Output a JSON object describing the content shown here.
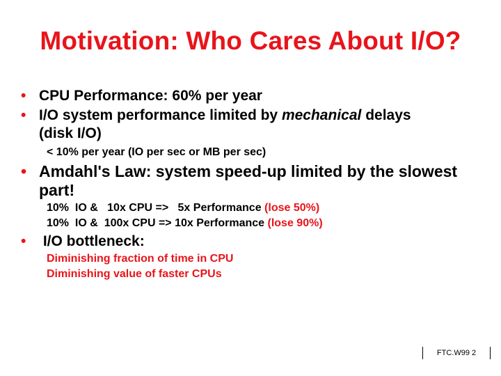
{
  "slide": {
    "title": "Motivation: Who Cares About I/O?",
    "bullet_symbol": "•",
    "bullet1": "CPU Performance: 60% per year",
    "bullet2_part1": "I/O system performance limited by ",
    "bullet2_emph": "mechanical",
    "bullet2_part2": " delays",
    "bullet2_cont": "(disk I/O)",
    "sub1": "< 10% per year (IO per sec or MB per sec)",
    "bullet3": "Amdahl's Law: system speed-up limited by the slowest",
    "bullet3_cont": "part!",
    "sub2_a": "10%  IO &   10x CPU =>   5x Performance ",
    "sub2_b": "(lose 50%)",
    "sub3_a": "10%  IO &  100x CPU => 10x Performance ",
    "sub3_b": "(lose 90%)",
    "bullet4": " I/O bottleneck:",
    "sub4": "Diminishing fraction of time in CPU",
    "sub5": "Diminishing value of faster CPUs",
    "footer": "FTC.W99 2"
  }
}
